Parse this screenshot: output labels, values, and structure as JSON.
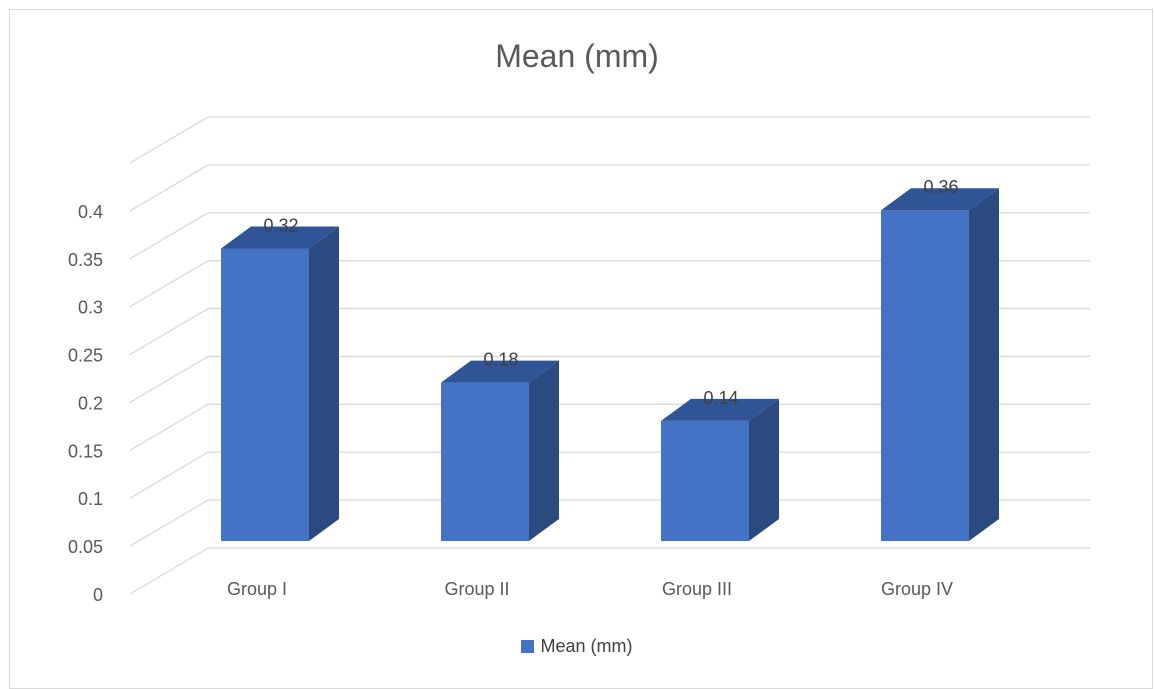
{
  "chart_data": {
    "type": "bar",
    "title": "Mean (mm)",
    "categories": [
      "Group I",
      "Group II",
      "Group III",
      "Group IV"
    ],
    "series": [
      {
        "name": "Mean (mm)",
        "values": [
          0.32,
          0.18,
          0.14,
          0.36
        ]
      }
    ],
    "yticks": [
      "0",
      "0.05",
      "0.1",
      "0.15",
      "0.2",
      "0.25",
      "0.3",
      "0.35",
      "0.4"
    ],
    "ylim": [
      0,
      0.45
    ],
    "grid": true,
    "legend_position": "bottom",
    "data_labels": [
      "0.32",
      "0.18",
      "0.14",
      "0.36"
    ],
    "colors": {
      "front": "#4472c4",
      "top": "#2f5597",
      "side": "#2a4a80",
      "grid": "#d9d9d9",
      "text": "#595959"
    }
  }
}
